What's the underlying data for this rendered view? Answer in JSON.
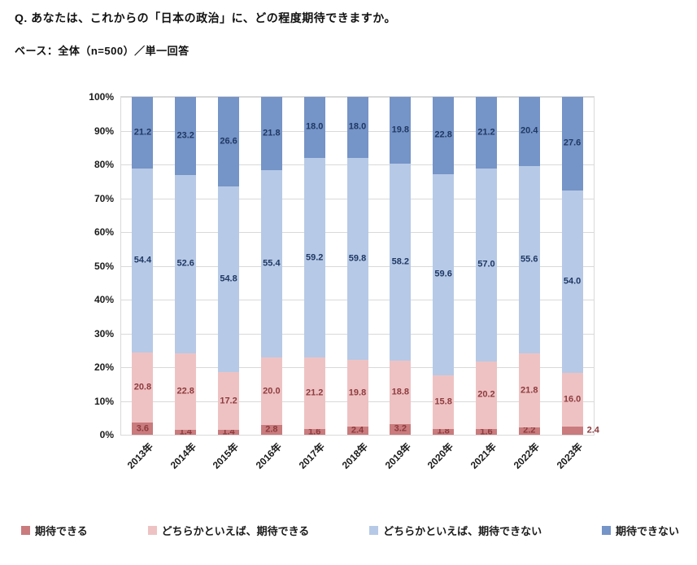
{
  "header": {
    "question": "Q. あなたは、これからの「日本の政治」に、どの程度期待できますか。",
    "base": "ベース：全体（n=500）／単一回答"
  },
  "chart_data": {
    "type": "bar",
    "stacked": true,
    "percent": true,
    "title": "",
    "xlabel": "",
    "ylabel": "",
    "ylim": [
      0,
      100
    ],
    "yticks": [
      "0%",
      "10%",
      "20%",
      "30%",
      "40%",
      "50%",
      "60%",
      "70%",
      "80%",
      "90%",
      "100%"
    ],
    "grid": true,
    "legend_position": "bottom",
    "categories": [
      "2013年",
      "2014年",
      "2015年",
      "2016年",
      "2017年",
      "2018年",
      "2019年",
      "2020年",
      "2021年",
      "2022年",
      "2023年"
    ],
    "series": [
      {
        "name": "期待できる",
        "color": "#C97B7D",
        "label_color": "#8E3B3E",
        "values": [
          3.6,
          1.4,
          1.4,
          2.8,
          1.6,
          2.4,
          3.2,
          1.8,
          1.6,
          2.2,
          2.4
        ]
      },
      {
        "name": "どちらかといえば、期待できる",
        "color": "#EEC2C3",
        "label_color": "#8E3B3E",
        "values": [
          20.8,
          22.8,
          17.2,
          20.0,
          21.2,
          19.8,
          18.8,
          15.8,
          20.2,
          21.8,
          16.0
        ]
      },
      {
        "name": "どちらかといえば、期待できない",
        "color": "#B6C9E6",
        "label_color": "#1F3864",
        "values": [
          54.4,
          52.6,
          54.8,
          55.4,
          59.2,
          59.8,
          58.2,
          59.6,
          57.0,
          55.6,
          54.0
        ]
      },
      {
        "name": "期待できない",
        "color": "#7594C7",
        "label_color": "#1F3864",
        "values": [
          21.2,
          23.2,
          26.6,
          21.8,
          18.0,
          18.0,
          19.8,
          22.8,
          21.2,
          20.4,
          27.6
        ]
      }
    ]
  }
}
